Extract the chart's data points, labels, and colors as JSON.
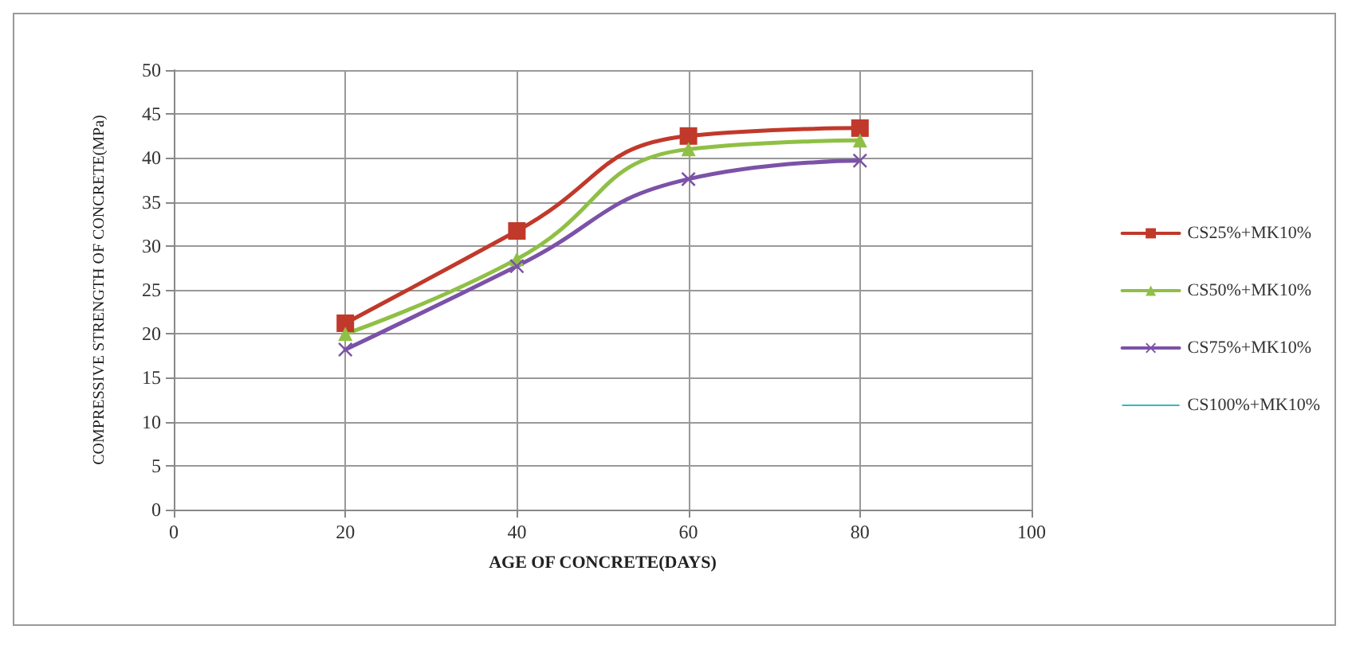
{
  "chart_data": {
    "type": "line",
    "xlabel": "AGE OF CONCRETE(DAYS)",
    "ylabel": "COMPRESSIVE STRENGTH OF CONCRETE(MPa)",
    "x": [
      20,
      40,
      60,
      80
    ],
    "series": [
      {
        "name": "CS25%+MK10%",
        "color": "#c0392b",
        "marker": "square",
        "values": [
          21.2,
          31.7,
          42.5,
          43.4
        ]
      },
      {
        "name": "CS50%+MK10%",
        "color": "#8fc045",
        "marker": "triangle",
        "values": [
          20.0,
          28.5,
          41.0,
          42.0
        ]
      },
      {
        "name": "CS75%+MK10%",
        "color": "#7b52a8",
        "marker": "cross",
        "values": [
          18.2,
          27.7,
          37.6,
          39.7
        ]
      },
      {
        "name": "CS100%+MK10%",
        "color": "#33b8c4",
        "marker": "none",
        "values": [
          null,
          null,
          null,
          null
        ]
      }
    ],
    "xlim": [
      0,
      100
    ],
    "xticks": [
      0,
      20,
      40,
      60,
      80,
      100
    ],
    "ylim": [
      0,
      50
    ],
    "yticks": [
      0,
      5,
      10,
      15,
      20,
      25,
      30,
      35,
      40,
      45,
      50
    ],
    "grid": true,
    "legend": "right"
  }
}
